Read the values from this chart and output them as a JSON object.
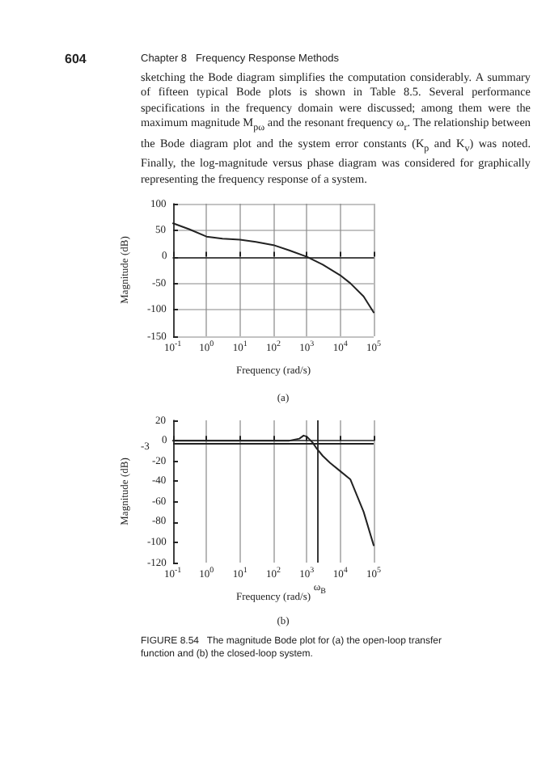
{
  "chart_data": [
    {
      "type": "line",
      "xlabel": "Frequency (rad/s)",
      "ylabel": "Magnitude (dB)",
      "annotations": [
        "604",
        "Chapter 8   Frequency Response Methods",
        "sketching the Bode diagram simplifies the computation considerably. A summary of fifteen typical Bode plots is shown in Table 8.5. Several performance specifications in the frequency domain were discussed; among them were the maximum magnitude M$_{pω}$ and the resonant frequency ω$_{r}$. The relationship between the Bode diagram plot and the system error constants (K$_{p}$ and K$_{v}$) was noted. Finally, the log-magnitude versus phase diagram was considered for graphically representing the frequency response of a system.",
        "(a)"
      ],
      "x": [
        0.1,
        0.3,
        1,
        3,
        10,
        30,
        100,
        300,
        1000,
        3000,
        10000,
        20000,
        50000,
        100000
      ],
      "series": [
        {
          "color": "#222222",
          "values": [
            63,
            52,
            38,
            34,
            32,
            28,
            22,
            12,
            0,
            -15,
            -35,
            -50,
            -75,
            -105
          ]
        }
      ],
      "log": "x",
      "xlim": [
        0.1,
        100000
      ],
      "ylim": [
        -150,
        100
      ],
      "xticks": [
        {
          "value": 0.1,
          "label": "10$^{-1}$"
        },
        {
          "value": 1,
          "label": "10$^{0}$"
        },
        {
          "value": 10,
          "label": "10$^{1}$"
        },
        {
          "value": 100,
          "label": "10$^{2}$"
        },
        {
          "value": 1000,
          "label": "10$^{3}$"
        },
        {
          "value": 10000,
          "label": "10$^{4}$"
        },
        {
          "value": 100000,
          "label": "10$^{5}$"
        }
      ],
      "yticks": [
        -150,
        -100,
        -50,
        0,
        50,
        100
      ],
      "grid": true,
      "marker": "none",
      "line_style": "solid"
    },
    {
      "type": "line",
      "xlabel": "Frequency (rad/s)",
      "ylabel": "Magnitude (dB)",
      "annotations": [
        "(b)",
        "FIGURE 8.54   The magnitude Bode plot for (a) the open-loop transfer function and (b) the closed-loop system."
      ],
      "x": [
        0.1,
        1,
        10,
        100,
        300,
        600,
        800,
        1000,
        1500,
        2000,
        3000,
        5000,
        10000,
        20000,
        50000,
        100000
      ],
      "series": [
        {
          "color": "#222222",
          "values": [
            0,
            0,
            0,
            0,
            0,
            2,
            5,
            4,
            -2,
            -8,
            -15,
            -22,
            -30,
            -38,
            -70,
            -103
          ]
        }
      ],
      "log": "x",
      "xlim": [
        0.1,
        100000
      ],
      "ylim": [
        -120,
        20
      ],
      "xticks": [
        {
          "value": 0.1,
          "label": "10$^{-1}$"
        },
        {
          "value": 1,
          "label": "10$^{0}$"
        },
        {
          "value": 10,
          "label": "10$^{1}$"
        },
        {
          "value": 100,
          "label": "10$^{2}$"
        },
        {
          "value": 1000,
          "label": "10$^{3}$"
        },
        {
          "value": 10000,
          "label": "10$^{4}$"
        },
        {
          "value": 100000,
          "label": "10$^{5}$"
        }
      ],
      "yticks": [
        -120,
        -100,
        -80,
        -60,
        -40,
        -20,
        0,
        20
      ],
      "ref_lines": [
        {
          "axis": "y",
          "value": -3,
          "label": "-3",
          "color": "#222222"
        },
        {
          "axis": "x",
          "value": 2000,
          "label": "ω$_{B}$",
          "color": "#222222"
        }
      ],
      "grid": "x",
      "marker": "none",
      "line_style": "solid"
    }
  ]
}
